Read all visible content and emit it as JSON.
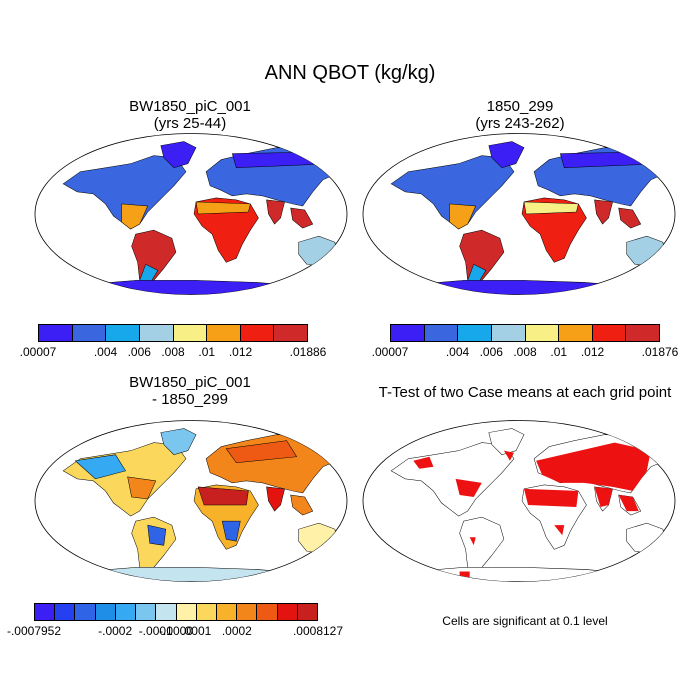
{
  "figure": {
    "title": "ANN QBOT (kg/kg)"
  },
  "panels": {
    "p1": {
      "title_line1": "BW1850_piC_001",
      "title_line2": "(yrs 25-44)"
    },
    "p2": {
      "title_line1": "1850_299",
      "title_line2": "(yrs 243-262)"
    },
    "p3": {
      "title_line1": "BW1850_piC_001",
      "title_line2": "- 1850_299"
    },
    "p4": {
      "title_line1": "T-Test of two Case means at each grid point"
    }
  },
  "colorbars": {
    "cb1": {
      "colors": [
        "#3b1ff5",
        "#3a66e0",
        "#17a8ec",
        "#a4d0e6",
        "#f9ef87",
        "#f5a017",
        "#ef2012",
        "#cf2929"
      ],
      "labels": [
        ".00007",
        ".004",
        ".006",
        ".008",
        ".01",
        ".012",
        ".01886"
      ]
    },
    "cb2": {
      "colors": [
        "#3b1ff5",
        "#3a66e0",
        "#17a8ec",
        "#a4d0e6",
        "#f9ef87",
        "#f5a017",
        "#ef2012",
        "#cf2929"
      ],
      "labels": [
        ".00007",
        ".004",
        ".006",
        ".008",
        ".01",
        ".012",
        ".01876"
      ]
    },
    "cb3": {
      "colors": [
        "#3b1ff5",
        "#2540f0",
        "#2f64e6",
        "#1f8ee6",
        "#35aaf2",
        "#7ac6ef",
        "#c4e4f0",
        "#fff2a8",
        "#fbd75c",
        "#f8b22a",
        "#f3861b",
        "#ee5a14",
        "#e3140f",
        "#c81f1f"
      ],
      "labels": [
        "-.0007952",
        "-.0002",
        "-.0001",
        "-.0000",
        ".0001",
        ".0002",
        ".0008127"
      ]
    }
  },
  "note": "Cells are significant at 0.1 level"
}
